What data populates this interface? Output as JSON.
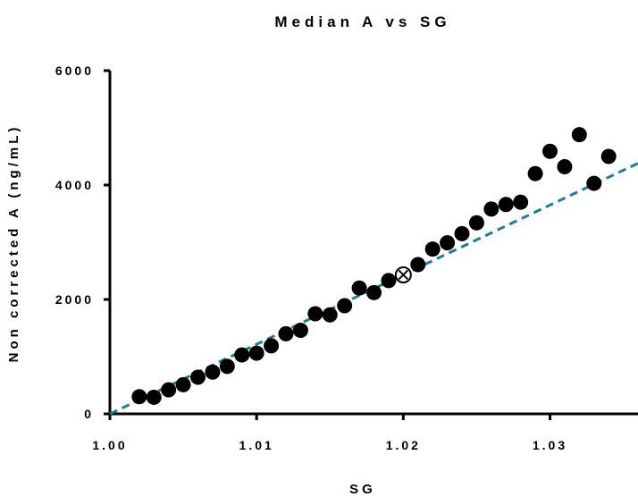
{
  "chart_data": {
    "type": "scatter",
    "title": "Median A vs SG",
    "xlabel": "SG",
    "ylabel": "Non corrected A (ng/mL)",
    "xlim": [
      1.0,
      1.036
    ],
    "ylim": [
      0,
      6000
    ],
    "x_ticks": [
      "1.00",
      "1.01",
      "1.02",
      "1.03"
    ],
    "x_tick_values": [
      1.0,
      1.01,
      1.02,
      1.03
    ],
    "y_ticks": [
      "0",
      "2000",
      "4000",
      "6000"
    ],
    "y_tick_values": [
      0,
      2000,
      4000,
      6000
    ],
    "grid": false,
    "points_color": "#000000",
    "trend_color": "#1a7f96",
    "series": [
      {
        "x": [
          1.002,
          1.003,
          1.004,
          1.005,
          1.006,
          1.007,
          1.008,
          1.009,
          1.01,
          1.011,
          1.012,
          1.013,
          1.014,
          1.015,
          1.016,
          1.017,
          1.018,
          1.019,
          1.02,
          1.021,
          1.022,
          1.023,
          1.024,
          1.025,
          1.026,
          1.027,
          1.028,
          1.029,
          1.03,
          1.031,
          1.032,
          1.033,
          1.034
        ],
        "y": [
          300,
          290,
          420,
          510,
          640,
          730,
          830,
          1030,
          1060,
          1190,
          1400,
          1460,
          1750,
          1730,
          1890,
          2200,
          2120,
          2330,
          2430,
          2610,
          2880,
          2990,
          3150,
          3340,
          3580,
          3660,
          3700,
          4200,
          4590,
          4320,
          4880,
          4030,
          4500
        ]
      }
    ],
    "highlight_point": {
      "x": 1.02,
      "y": 2430
    },
    "trend_line": {
      "x": [
        1.0,
        1.036
      ],
      "y": [
        0,
        4380
      ]
    }
  }
}
